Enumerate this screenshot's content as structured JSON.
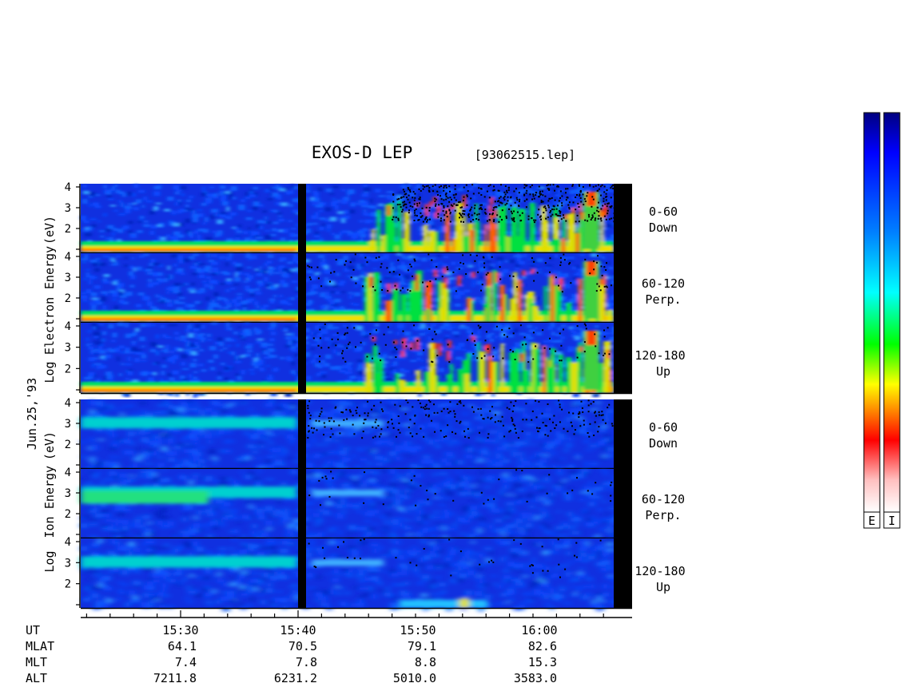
{
  "chart_data": {
    "type": "heatmap",
    "title": "EXOS-D LEP",
    "file_label": "[93062515.lep]",
    "date_label": "Jun.25,'93",
    "x_axis": {
      "ticks": [
        "15:30",
        "15:40",
        "15:50",
        "16:00"
      ],
      "minor_ticks_per_major": 5
    },
    "y_ticks": [
      "1",
      "2",
      "3",
      "4"
    ],
    "panel_groups": [
      {
        "name": "electron",
        "ylabel_words": [
          "Log",
          "Electron",
          "Energy",
          "(eV)"
        ],
        "panels": [
          {
            "pitch": "0-60",
            "direction": "Down"
          },
          {
            "pitch": "60-120",
            "direction": "Perp."
          },
          {
            "pitch": "120-180",
            "direction": "Up"
          }
        ]
      },
      {
        "name": "ion",
        "ylabel_words": [
          "Log",
          "Ion",
          "Energy",
          "(eV)"
        ],
        "panels": [
          {
            "pitch": "0-60",
            "direction": "Down"
          },
          {
            "pitch": "60-120",
            "direction": "Perp."
          },
          {
            "pitch": "120-180",
            "direction": "Up"
          }
        ]
      }
    ],
    "ephemeris": {
      "labels": [
        "UT",
        "MLAT",
        "MLT",
        "ALT"
      ],
      "rows": [
        {
          "name": "MLAT",
          "values": [
            "64.1",
            "70.5",
            "79.1",
            "82.6"
          ]
        },
        {
          "name": "MLT",
          "values": [
            "7.4",
            "7.8",
            "8.8",
            "15.3"
          ]
        },
        {
          "name": "ALT",
          "values": [
            "7211.8",
            "6231.2",
            "5010.0",
            "3583.0"
          ]
        }
      ]
    },
    "colorbar": {
      "labels": [
        "E",
        "I"
      ],
      "colors": [
        "#000080",
        "#0000ff",
        "#0080ff",
        "#00ffff",
        "#00ff00",
        "#ffff00",
        "#ff8000",
        "#ff0000",
        "#ffb0b0",
        "#ffffff"
      ]
    }
  }
}
